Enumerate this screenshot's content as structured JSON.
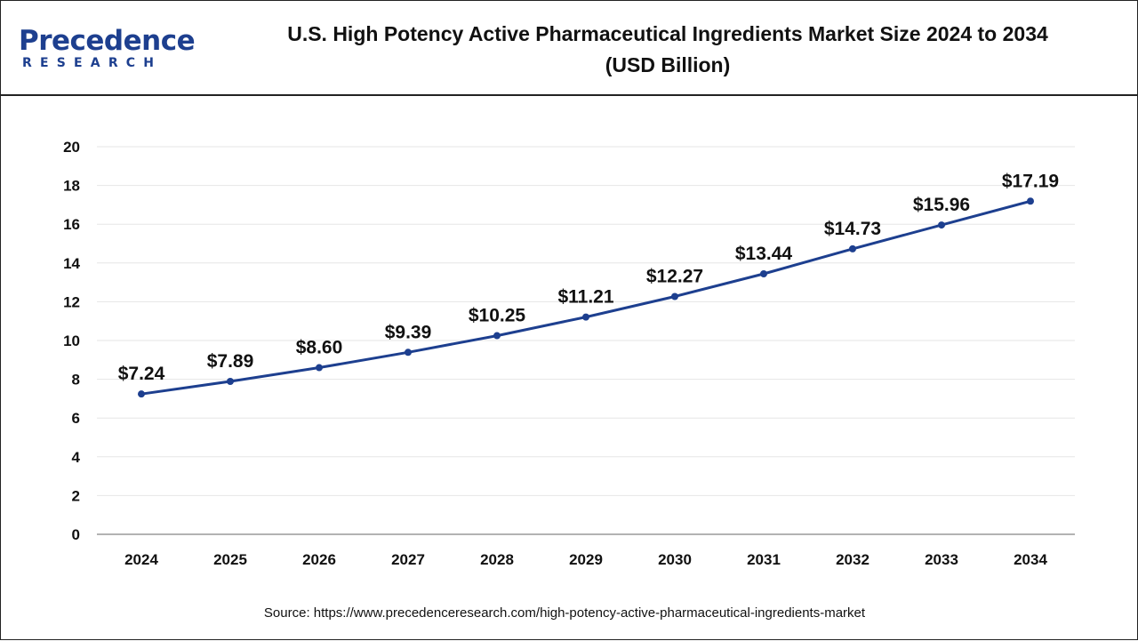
{
  "header": {
    "logo_name": "Precedence",
    "logo_sub": "RESEARCH",
    "title_line1": "U.S. High Potency Active Pharmaceutical Ingredients Market Size 2024 to 2034",
    "title_line2": "(USD Billion)"
  },
  "source": "Source: https://www.precedenceresearch.com/high-potency-active-pharmaceutical-ingredients-market",
  "colors": {
    "line": "#1d3f8f",
    "brand": "#1d3f8f",
    "grid": "#e6e6e6"
  },
  "chart_data": {
    "type": "line",
    "title": "U.S. High Potency Active Pharmaceutical Ingredients Market Size 2024 to 2034 (USD Billion)",
    "categories": [
      "2024",
      "2025",
      "2026",
      "2027",
      "2028",
      "2029",
      "2030",
      "2031",
      "2032",
      "2033",
      "2034"
    ],
    "values": [
      7.24,
      7.89,
      8.6,
      9.39,
      10.25,
      11.21,
      12.27,
      13.44,
      14.73,
      15.96,
      17.19
    ],
    "data_labels": [
      "$7.24",
      "$7.89",
      "$8.60",
      "$9.39",
      "$10.25",
      "$11.21",
      "$12.27",
      "$13.44",
      "$14.73",
      "$15.96",
      "$17.19"
    ],
    "ylim": [
      0,
      20
    ],
    "yticks": [
      0,
      2,
      4,
      6,
      8,
      10,
      12,
      14,
      16,
      18,
      20
    ],
    "xlabel": "",
    "ylabel": "",
    "grid": true,
    "legend": "none"
  }
}
